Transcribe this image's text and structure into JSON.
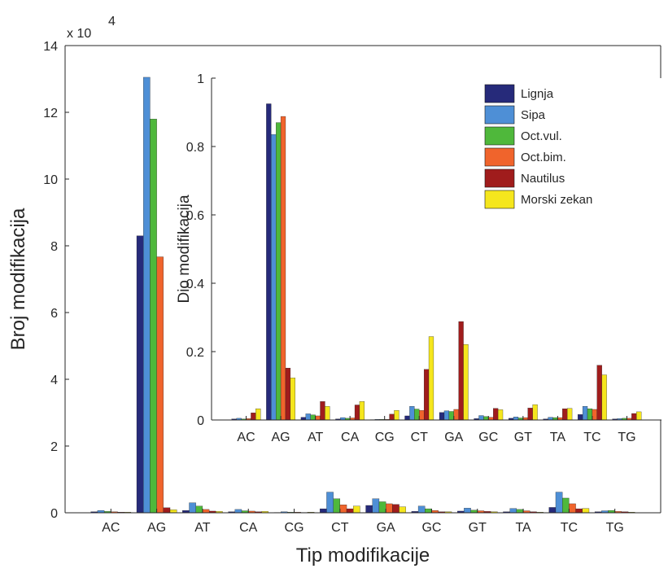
{
  "chart_data": [
    {
      "type": "bar",
      "xlabel": "Tip modifikacije",
      "ylabel": "Broj modifikacija",
      "scale_label_prefix": "x 10",
      "scale_label_exponent": "4",
      "categories": [
        "AC",
        "AG",
        "AT",
        "CA",
        "CG",
        "CT",
        "GA",
        "GC",
        "GT",
        "TA",
        "TC",
        "TG"
      ],
      "ylim": [
        0,
        14
      ],
      "yticks": [
        0,
        2,
        4,
        6,
        8,
        10,
        12,
        14
      ],
      "series": [
        {
          "name": "Lignja",
          "color": "#262a7a",
          "values": [
            0.03,
            8.3,
            0.07,
            0.03,
            0.01,
            0.12,
            0.22,
            0.04,
            0.05,
            0.03,
            0.16,
            0.03
          ]
        },
        {
          "name": "Sipa",
          "color": "#4e8fd6",
          "values": [
            0.07,
            13.05,
            0.3,
            0.1,
            0.03,
            0.62,
            0.42,
            0.2,
            0.14,
            0.13,
            0.62,
            0.06
          ]
        },
        {
          "name": "Oct.vul.",
          "color": "#4fb83b",
          "values": [
            0.04,
            11.8,
            0.2,
            0.06,
            0.02,
            0.42,
            0.33,
            0.12,
            0.08,
            0.1,
            0.44,
            0.07
          ]
        },
        {
          "name": "Oct.bim.",
          "color": "#f0642c",
          "values": [
            0.03,
            7.67,
            0.1,
            0.05,
            0.02,
            0.24,
            0.27,
            0.07,
            0.06,
            0.06,
            0.27,
            0.04
          ]
        },
        {
          "name": "Nautilus",
          "color": "#a01c1c",
          "values": [
            0.02,
            0.15,
            0.05,
            0.03,
            0.01,
            0.12,
            0.25,
            0.03,
            0.04,
            0.03,
            0.12,
            0.03
          ]
        },
        {
          "name": "Morski zekan",
          "color": "#f5e61d",
          "values": [
            0.02,
            0.09,
            0.04,
            0.04,
            0.02,
            0.2,
            0.18,
            0.03,
            0.03,
            0.02,
            0.13,
            0.02
          ]
        }
      ]
    },
    {
      "type": "bar",
      "xlabel": "",
      "ylabel": "Dio modifikacija",
      "categories": [
        "AC",
        "AG",
        "AT",
        "CA",
        "CG",
        "CT",
        "GA",
        "GC",
        "GT",
        "TA",
        "TC",
        "TG"
      ],
      "ylim": [
        0,
        1
      ],
      "yticks": [
        0,
        0.2,
        0.4,
        0.6,
        0.8,
        1
      ],
      "ytick_labels": [
        "0",
        "0.2",
        "0.4",
        "0.6",
        "0.8",
        "1"
      ],
      "legend_position": "top-right",
      "series": [
        {
          "name": "Lignja",
          "color": "#262a7a",
          "values": [
            0.003,
            0.925,
            0.008,
            0.003,
            0.001,
            0.012,
            0.022,
            0.004,
            0.005,
            0.003,
            0.016,
            0.003
          ]
        },
        {
          "name": "Sipa",
          "color": "#4e8fd6",
          "values": [
            0.005,
            0.835,
            0.018,
            0.007,
            0.002,
            0.04,
            0.027,
            0.013,
            0.009,
            0.008,
            0.04,
            0.004
          ]
        },
        {
          "name": "Oct.vul.",
          "color": "#4fb83b",
          "values": [
            0.003,
            0.87,
            0.015,
            0.005,
            0.002,
            0.032,
            0.025,
            0.01,
            0.006,
            0.007,
            0.033,
            0.005
          ]
        },
        {
          "name": "Oct.bim.",
          "color": "#f0642c",
          "values": [
            0.004,
            0.888,
            0.012,
            0.006,
            0.002,
            0.028,
            0.031,
            0.008,
            0.007,
            0.007,
            0.031,
            0.005
          ]
        },
        {
          "name": "Nautilus",
          "color": "#a01c1c",
          "values": [
            0.021,
            0.152,
            0.054,
            0.044,
            0.017,
            0.148,
            0.288,
            0.034,
            0.035,
            0.033,
            0.16,
            0.019
          ]
        },
        {
          "name": "Morski zekan",
          "color": "#f5e61d",
          "values": [
            0.033,
            0.123,
            0.04,
            0.054,
            0.028,
            0.244,
            0.221,
            0.03,
            0.045,
            0.034,
            0.132,
            0.024
          ]
        }
      ]
    }
  ]
}
